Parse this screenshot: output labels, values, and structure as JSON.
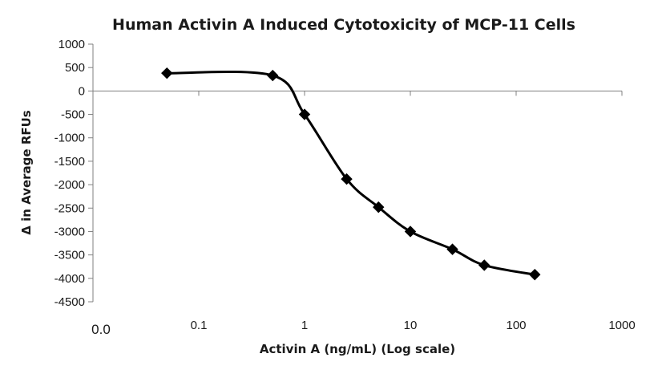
{
  "chart_data": {
    "type": "line",
    "title": "Human Activin A Induced Cytotoxicity of MCP-11 Cells",
    "xlabel": "Activin A (ng/mL) (Log scale)",
    "ylabel": "Δ in Average RFUs",
    "x_scale": "log",
    "xlim": [
      0.01,
      1000
    ],
    "ylim": [
      -4500,
      1000
    ],
    "x_tick_labels": [
      "0.0",
      "0.1",
      "1",
      "10",
      "100",
      "1000"
    ],
    "x_tick_values": [
      0.01,
      0.1,
      1,
      10,
      100,
      1000
    ],
    "y_ticks": [
      1000,
      500,
      0,
      -500,
      -1000,
      -1500,
      -2000,
      -2500,
      -3000,
      -3500,
      -4000,
      -4500
    ],
    "grid": false,
    "legend": "none",
    "series": [
      {
        "marker": "diamond",
        "color": "#000000",
        "smooth": true,
        "x": [
          0.05,
          0.5,
          1,
          2.5,
          5,
          10,
          25,
          50,
          150
        ],
        "y": [
          380,
          330,
          -500,
          -1880,
          -2480,
          -3000,
          -3380,
          -3720,
          -3920
        ]
      }
    ]
  }
}
